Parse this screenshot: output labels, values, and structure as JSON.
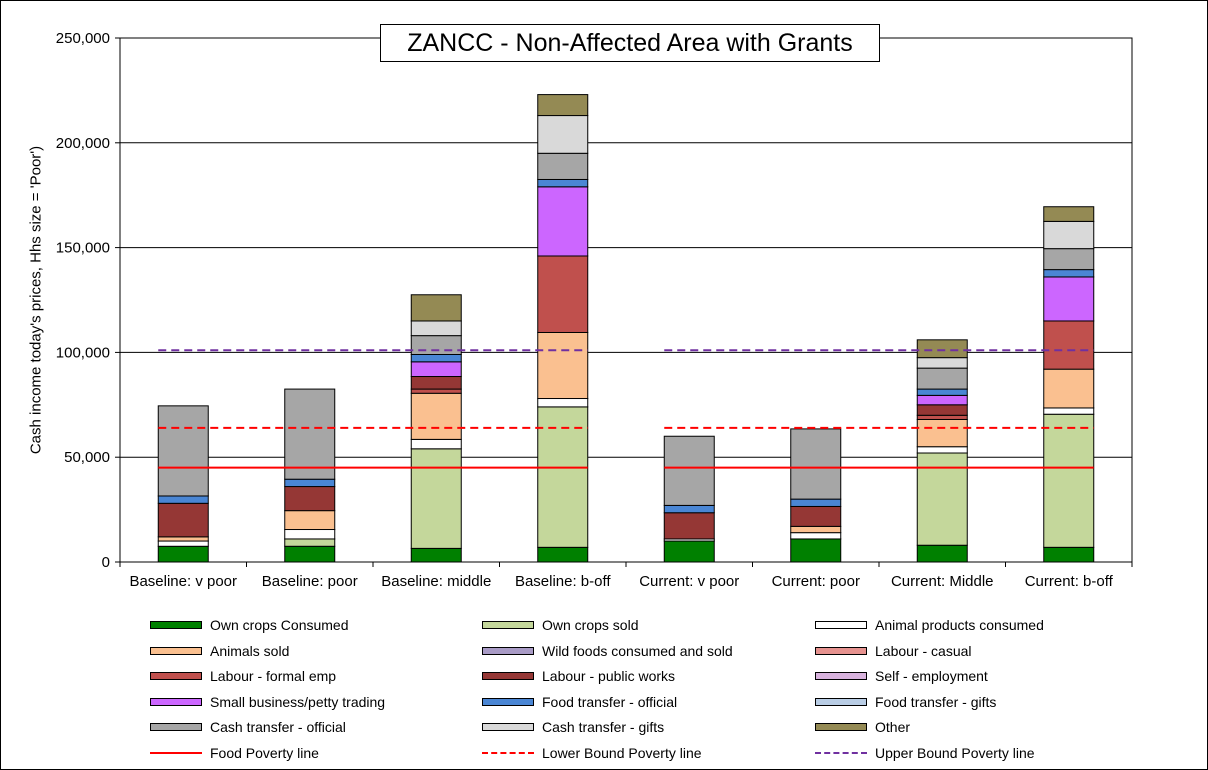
{
  "chart_data": {
    "type": "bar",
    "title": "ZANCC - Non-Affected Area with Grants",
    "ylabel": "Cash income today's prices, Hhs size = 'Poor')",
    "xlabel": "",
    "ylim": [
      0,
      250000
    ],
    "yticks": [
      "0",
      "50,000",
      "100,000",
      "150,000",
      "200,000",
      "250,000"
    ],
    "ytick_values": [
      0,
      50000,
      100000,
      150000,
      200000,
      250000
    ],
    "grid": true,
    "stacked": true,
    "legend_position": "bottom",
    "categories": [
      "Baseline: v poor",
      "Baseline: poor",
      "Baseline: middle",
      "Baseline: b-off",
      "Current: v poor",
      "Current: poor",
      "Current: Middle",
      "Current: b-off"
    ],
    "series": [
      {
        "name": "Own crops Consumed",
        "color": "#008000",
        "values": [
          7500,
          7500,
          6500,
          7000,
          10000,
          11000,
          8000,
          7000
        ]
      },
      {
        "name": "Own crops sold",
        "color": "#c4d79b",
        "values": [
          0,
          3500,
          47500,
          67000,
          0,
          0,
          44000,
          63500
        ]
      },
      {
        "name": "Animal products consumed",
        "color": "#ffffff",
        "values": [
          2500,
          4500,
          4500,
          4000,
          1000,
          3000,
          3000,
          3000
        ]
      },
      {
        "name": "Animals sold",
        "color": "#fac090",
        "values": [
          2000,
          9000,
          22000,
          31500,
          0,
          3000,
          13000,
          18500
        ]
      },
      {
        "name": "Wild foods consumed and sold",
        "color": "#a99bc6",
        "values": [
          0,
          0,
          0,
          0,
          0,
          0,
          0,
          0
        ]
      },
      {
        "name": "Labour - casual",
        "color": "#e6928f",
        "values": [
          0,
          0,
          0,
          0,
          0,
          0,
          0,
          0
        ]
      },
      {
        "name": "Labour - formal emp",
        "color": "#c0504d",
        "values": [
          0,
          0,
          2000,
          36500,
          0,
          0,
          2000,
          23000
        ]
      },
      {
        "name": "Labour - public works",
        "color": "#953735",
        "values": [
          16000,
          11500,
          6000,
          0,
          12500,
          9500,
          5000,
          0
        ]
      },
      {
        "name": "Self - employment",
        "color": "#d9b3de",
        "values": [
          0,
          0,
          0,
          0,
          0,
          0,
          0,
          0
        ]
      },
      {
        "name": "Small business/petty trading",
        "color": "#cc66ff",
        "values": [
          0,
          0,
          7000,
          33000,
          0,
          0,
          4500,
          21000
        ]
      },
      {
        "name": "Food transfer - official",
        "color": "#4a86d4",
        "values": [
          3500,
          3500,
          3500,
          3500,
          3500,
          3500,
          3000,
          3500
        ]
      },
      {
        "name": "Food transfer - gifts",
        "color": "#b9cde5",
        "values": [
          0,
          0,
          0,
          0,
          0,
          0,
          0,
          0
        ]
      },
      {
        "name": "Cash transfer - official",
        "color": "#a6a6a6",
        "values": [
          43000,
          43000,
          9000,
          12500,
          33000,
          33500,
          10000,
          10000
        ]
      },
      {
        "name": "Cash transfer - gifts",
        "color": "#d9d9d9",
        "values": [
          0,
          0,
          7000,
          18000,
          0,
          0,
          5000,
          13000
        ]
      },
      {
        "name": "Other",
        "color": "#948a54",
        "values": [
          0,
          0,
          12500,
          10000,
          0,
          0,
          8500,
          7000
        ]
      }
    ],
    "lines": [
      {
        "name": "Food Poverty line",
        "color": "#ff0000",
        "style": "solid",
        "value": 45000,
        "groups": [
          [
            0,
            3
          ],
          [
            4,
            7
          ]
        ]
      },
      {
        "name": "Lower Bound Poverty line",
        "color": "#ff0000",
        "style": "dashed",
        "value": 64000,
        "groups": [
          [
            0,
            3
          ],
          [
            4,
            7
          ]
        ]
      },
      {
        "name": "Upper Bound Poverty line",
        "color": "#7030a0",
        "style": "dashed",
        "value": 101000,
        "groups": [
          [
            0,
            3
          ],
          [
            4,
            7
          ]
        ]
      }
    ]
  }
}
